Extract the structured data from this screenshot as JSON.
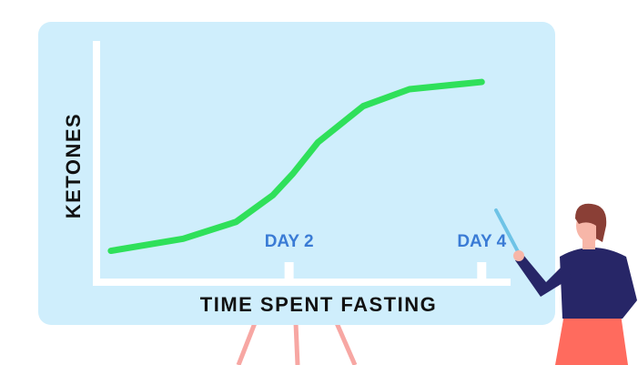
{
  "chart_data": {
    "type": "line",
    "xlabel": "TIME SPENT FASTING",
    "ylabel": "KETONES",
    "x": [
      0.15,
      0.9,
      1.45,
      1.83,
      2.04,
      2.3,
      2.77,
      3.25,
      4
    ],
    "series": [
      {
        "color": "#2fe05a",
        "values": [
          13,
          18,
          25,
          36,
          45,
          58,
          73,
          80,
          83
        ]
      }
    ],
    "xlim": [
      0,
      4.3
    ],
    "ylim": [
      0,
      100
    ],
    "xticks": [
      {
        "value": 2,
        "label": "DAY 2"
      },
      {
        "value": 4,
        "label": "DAY 4"
      }
    ]
  }
}
